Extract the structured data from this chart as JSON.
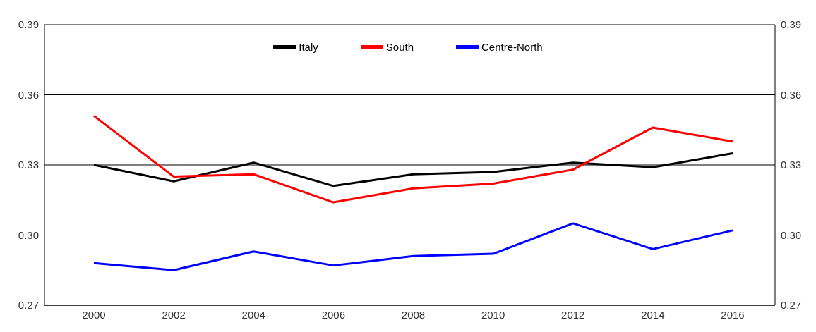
{
  "chart_data": {
    "type": "line",
    "categories": [
      "2000",
      "2002",
      "2004",
      "2006",
      "2008",
      "2010",
      "2012",
      "2014",
      "2016"
    ],
    "series": [
      {
        "name": "Italy",
        "color": "#000000",
        "values": [
          0.33,
          0.323,
          0.331,
          0.321,
          0.326,
          0.327,
          0.331,
          0.329,
          0.335
        ]
      },
      {
        "name": "South",
        "color": "#ff0000",
        "values": [
          0.351,
          0.325,
          0.326,
          0.314,
          0.32,
          0.322,
          0.328,
          0.346,
          0.34
        ]
      },
      {
        "name": "Centre-North",
        "color": "#0000ff",
        "values": [
          0.288,
          0.285,
          0.293,
          0.287,
          0.291,
          0.292,
          0.305,
          0.294,
          0.302
        ]
      }
    ],
    "ylim": [
      0.27,
      0.39
    ],
    "yticks": [
      0.27,
      {
        "value": 0.3,
        "label": "0.30"
      },
      0.33,
      0.36,
      0.39
    ],
    "y2lim": [
      0.27,
      0.39
    ],
    "y2ticks": [
      0.27,
      {
        "value": 0.3,
        "label": "0.30"
      },
      0.33,
      0.36,
      0.39
    ],
    "grid": "y",
    "legend": "top",
    "marker": "none",
    "line_style": "solid"
  }
}
